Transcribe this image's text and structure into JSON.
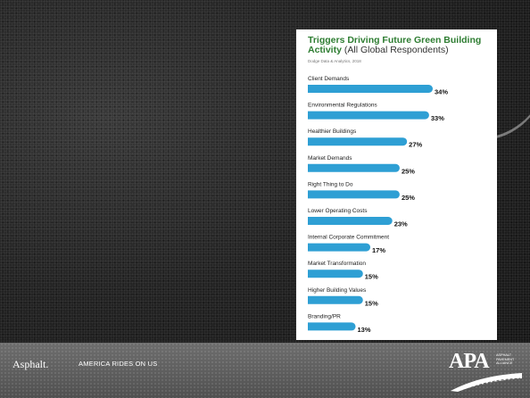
{
  "chart_data": {
    "type": "bar",
    "orientation": "horizontal",
    "title": "Triggers Driving Future Green Building Activity",
    "subtitle": "(All Global Respondents)",
    "source": "Dodge Data & Analytics, 2018",
    "categories": [
      "Client Demands",
      "Environmental Regulations",
      "Healthier Buildings",
      "Market Demands",
      "Right Thing to Do",
      "Lower Operating Costs",
      "Internal Corporate Commitment",
      "Market Transformation",
      "Higher Building Values",
      "Branding/PR"
    ],
    "values": [
      34,
      33,
      27,
      25,
      25,
      23,
      17,
      15,
      15,
      13
    ],
    "value_labels": [
      "34%",
      "33%",
      "27%",
      "25%",
      "25%",
      "23%",
      "17%",
      "15%",
      "15%",
      "13%"
    ],
    "bar_color": "#2e9fd4",
    "title_color": "#2e7d32",
    "grid": false,
    "legend": "none"
  },
  "footer": {
    "brand": "Asphalt.",
    "tagline": "AMERICA RIDES ON US",
    "logo_text": "APA",
    "logo_sub": "ASPHALT PAVEMENT ALLIANCE"
  }
}
